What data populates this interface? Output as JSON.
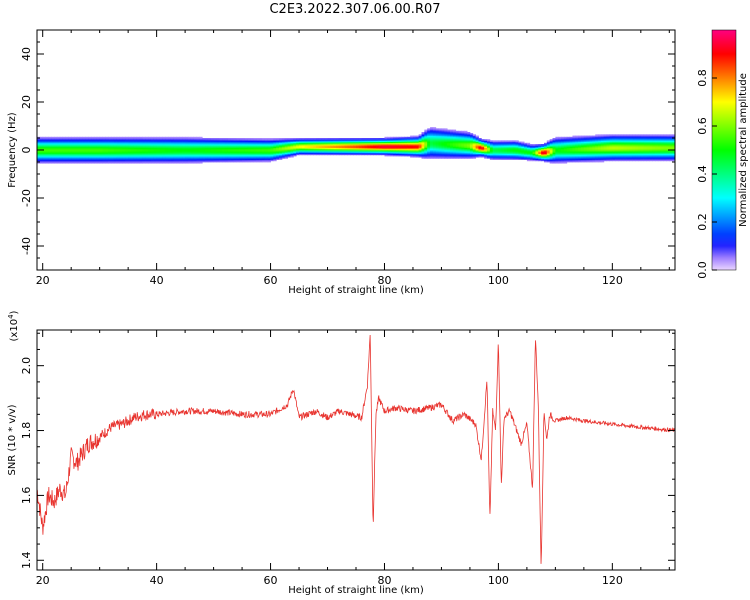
{
  "title": "C2E3.2022.307.06.00.R07",
  "colors": {
    "snr_line": "#e8332e",
    "axes": "#000000"
  },
  "chart_data": [
    {
      "type": "heatmap",
      "xlabel": "Height of straight line (km)",
      "ylabel": "Frequency (Hz)",
      "xlim": [
        19,
        131
      ],
      "ylim": [
        -50,
        50
      ],
      "xticks": [
        20,
        40,
        60,
        80,
        100,
        120
      ],
      "yticks": [
        -40,
        -20,
        0,
        20,
        40
      ],
      "colorbar": {
        "label": "Normalized spectral amplitude",
        "range": [
          0,
          1
        ],
        "ticks": [
          "0.0",
          "0.2",
          "0.4",
          "0.6",
          "0.8"
        ]
      },
      "band": [
        {
          "x": 19,
          "center": 0,
          "halfwidth": 4,
          "peak": 0.55
        },
        {
          "x": 30,
          "center": 0,
          "halfwidth": 4,
          "peak": 0.55
        },
        {
          "x": 45,
          "center": 0,
          "halfwidth": 4,
          "peak": 0.5
        },
        {
          "x": 60,
          "center": 0,
          "halfwidth": 3.5,
          "peak": 0.55
        },
        {
          "x": 65,
          "center": 1.5,
          "halfwidth": 2.5,
          "peak": 0.7
        },
        {
          "x": 75,
          "center": 1.5,
          "halfwidth": 2.5,
          "peak": 0.85
        },
        {
          "x": 80,
          "center": 1.5,
          "halfwidth": 2.5,
          "peak": 0.95
        },
        {
          "x": 86,
          "center": 1.5,
          "halfwidth": 3,
          "peak": 0.9
        },
        {
          "x": 88,
          "center": 3,
          "halfwidth": 5,
          "peak": 0.45
        },
        {
          "x": 95,
          "center": 2,
          "halfwidth": 4,
          "peak": 0.6
        },
        {
          "x": 97,
          "center": 1,
          "halfwidth": 2.5,
          "peak": 0.95
        },
        {
          "x": 99,
          "center": 0,
          "halfwidth": 3,
          "peak": 0.45
        },
        {
          "x": 103,
          "center": 0,
          "halfwidth": 3,
          "peak": 0.5
        },
        {
          "x": 106,
          "center": -1,
          "halfwidth": 2.5,
          "peak": 0.5
        },
        {
          "x": 108,
          "center": -1,
          "halfwidth": 2.5,
          "peak": 0.98
        },
        {
          "x": 110,
          "center": 0,
          "halfwidth": 4,
          "peak": 0.5
        },
        {
          "x": 120,
          "center": 1,
          "halfwidth": 4,
          "peak": 0.65
        },
        {
          "x": 131,
          "center": 1,
          "halfwidth": 4,
          "peak": 0.6
        }
      ]
    },
    {
      "type": "line",
      "xlabel": "Height of straight line (km)",
      "ylabel": "SNR (10 * v/v)",
      "yscale_label": "(x10",
      "yscale_exp": "4",
      "yscale_close": ")",
      "xlim": [
        19,
        131
      ],
      "ylim": [
        1.37,
        2.11
      ],
      "xticks": [
        20,
        40,
        60,
        80,
        100,
        120
      ],
      "yticks": [
        "1.4",
        "1.6",
        "1.8",
        "2.0"
      ],
      "series": [
        {
          "x": [
            19,
            20,
            21,
            22,
            23,
            24,
            25,
            26,
            28,
            30,
            32,
            34,
            36,
            38,
            40,
            45,
            50,
            55,
            60,
            63,
            64,
            65,
            68,
            70,
            72,
            74,
            76,
            77,
            77.5,
            78,
            78.5,
            79,
            80,
            82,
            85,
            88,
            90,
            92,
            94,
            96,
            97,
            98,
            98.5,
            99,
            99.5,
            100,
            100.5,
            101,
            102,
            104,
            105,
            106,
            106.5,
            107,
            107.5,
            108,
            108.5,
            109,
            110,
            112,
            115,
            120,
            125,
            131
          ],
          "values": [
            1.62,
            1.5,
            1.6,
            1.58,
            1.62,
            1.6,
            1.72,
            1.7,
            1.76,
            1.78,
            1.81,
            1.82,
            1.84,
            1.85,
            1.85,
            1.86,
            1.86,
            1.85,
            1.85,
            1.88,
            1.93,
            1.84,
            1.86,
            1.84,
            1.86,
            1.85,
            1.84,
            1.94,
            2.1,
            1.5,
            1.85,
            1.9,
            1.86,
            1.87,
            1.86,
            1.87,
            1.88,
            1.83,
            1.85,
            1.82,
            1.71,
            1.96,
            1.52,
            1.86,
            1.8,
            2.08,
            1.63,
            1.84,
            1.86,
            1.76,
            1.82,
            1.62,
            2.09,
            1.88,
            1.37,
            1.86,
            1.77,
            1.85,
            1.83,
            1.84,
            1.83,
            1.82,
            1.81,
            1.8
          ]
        }
      ]
    }
  ]
}
